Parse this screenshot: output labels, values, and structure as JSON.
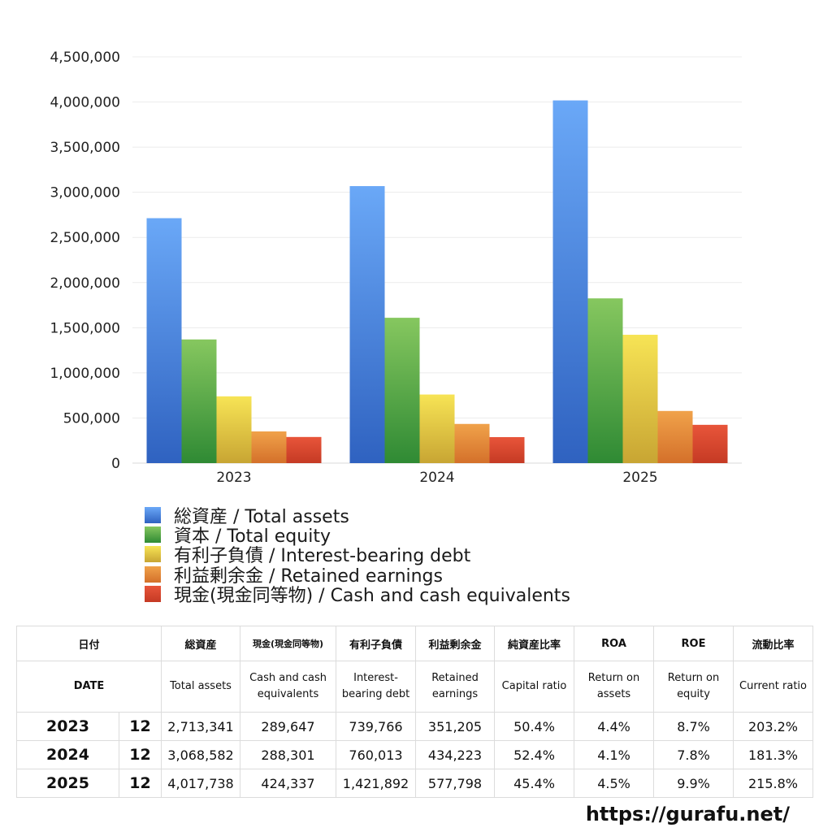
{
  "chart_data": {
    "type": "bar",
    "categories": [
      "2023",
      "2024",
      "2025"
    ],
    "series": [
      {
        "name": "総資産 / Total assets",
        "values": [
          2713341,
          3068582,
          4017738
        ],
        "color_top": "#6aa8f7",
        "color_bottom": "#2f62c0"
      },
      {
        "name": "資本 / Total equity",
        "values": [
          1370000,
          1610000,
          1825000
        ],
        "color_top": "#86c75f",
        "color_bottom": "#2f8a34"
      },
      {
        "name": "有利子負債 / Interest-bearing debt",
        "values": [
          739766,
          760013,
          1421892
        ],
        "color_top": "#f7e455",
        "color_bottom": "#c8a533"
      },
      {
        "name": "利益剰余金 / Retained earnings",
        "values": [
          351205,
          434223,
          577798
        ],
        "color_top": "#f0a24a",
        "color_bottom": "#d4702a"
      },
      {
        "name": "現金(現金同等物)  /  Cash and cash equivalents",
        "values": [
          289647,
          288301,
          424337
        ],
        "color_top": "#e8553a",
        "color_bottom": "#c53a24"
      }
    ],
    "yticks": [
      "0",
      "500,000",
      "1,000,000",
      "1,500,000",
      "2,000,000",
      "2,500,000",
      "3,000,000",
      "3,500,000",
      "4,000,000",
      "4,500,000"
    ],
    "ylim": [
      0,
      4500000
    ],
    "grid": true,
    "legend_position": "bottom"
  },
  "table": {
    "header_jp": [
      "日付",
      "",
      "総資産",
      "現金(現金同等物)",
      "有利子負債",
      "利益剰余金",
      "純資産比率",
      "ROA",
      "ROE",
      "流動比率"
    ],
    "header_en": [
      "DATE",
      "",
      "Total assets",
      "Cash and cash equivalents",
      "Interest-bearing debt",
      "Retained earnings",
      "Capital ratio",
      "Return on assets",
      "Return on equity",
      "Current ratio"
    ],
    "rows": [
      [
        "2023",
        "12",
        "2,713,341",
        "289,647",
        "739,766",
        "351,205",
        "50.4%",
        "4.4%",
        "8.7%",
        "203.2%"
      ],
      [
        "2024",
        "12",
        "3,068,582",
        "288,301",
        "760,013",
        "434,223",
        "52.4%",
        "4.1%",
        "7.8%",
        "181.3%"
      ],
      [
        "2025",
        "12",
        "4,017,738",
        "424,337",
        "1,421,892",
        "577,798",
        "45.4%",
        "4.5%",
        "9.9%",
        "215.8%"
      ]
    ]
  },
  "credit": "https://gurafu.net/"
}
